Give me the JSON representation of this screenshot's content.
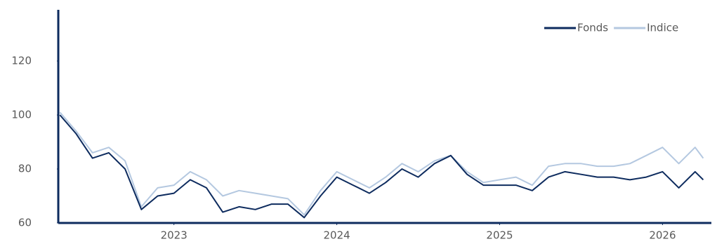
{
  "chart_data": {
    "type": "line",
    "x": [
      2022.3,
      2022.4,
      2022.5,
      2022.6,
      2022.7,
      2022.8,
      2022.9,
      2023.0,
      2023.1,
      2023.2,
      2023.3,
      2023.4,
      2023.5,
      2023.6,
      2023.7,
      2023.8,
      2023.9,
      2024.0,
      2024.1,
      2024.2,
      2024.3,
      2024.4,
      2024.5,
      2024.6,
      2024.7,
      2024.8,
      2024.9,
      2025.0,
      2025.1,
      2025.2,
      2025.3,
      2025.4,
      2025.5,
      2025.6,
      2025.7,
      2025.8,
      2025.9,
      2026.0,
      2026.1,
      2026.2,
      2026.25
    ],
    "series": [
      {
        "name": "Fonds",
        "color": "#0d2b5e",
        "values": [
          100,
          93,
          84,
          86,
          80,
          65,
          70,
          71,
          76,
          73,
          64,
          66,
          65,
          67,
          67,
          62,
          70,
          77,
          74,
          71,
          75,
          80,
          77,
          82,
          85,
          78,
          74,
          74,
          74,
          72,
          77,
          79,
          78,
          77,
          77,
          76,
          77,
          79,
          73,
          79,
          76
        ]
      },
      {
        "name": "Indice",
        "color": "#b4c8e0",
        "values": [
          101,
          94,
          86,
          88,
          83,
          66,
          73,
          74,
          79,
          76,
          70,
          72,
          71,
          70,
          69,
          63,
          72,
          79,
          76,
          73,
          77,
          82,
          79,
          83,
          85,
          79,
          75,
          76,
          77,
          74,
          81,
          82,
          82,
          81,
          81,
          82,
          85,
          88,
          82,
          88,
          84
        ]
      }
    ],
    "xlim": [
      2022.29,
      2026.3
    ],
    "xticks": [
      2023,
      2024,
      2025,
      2026
    ],
    "ylim": [
      60,
      140
    ],
    "yticks": [
      60,
      80,
      100,
      120
    ],
    "grid": false,
    "legend": "top-right"
  }
}
